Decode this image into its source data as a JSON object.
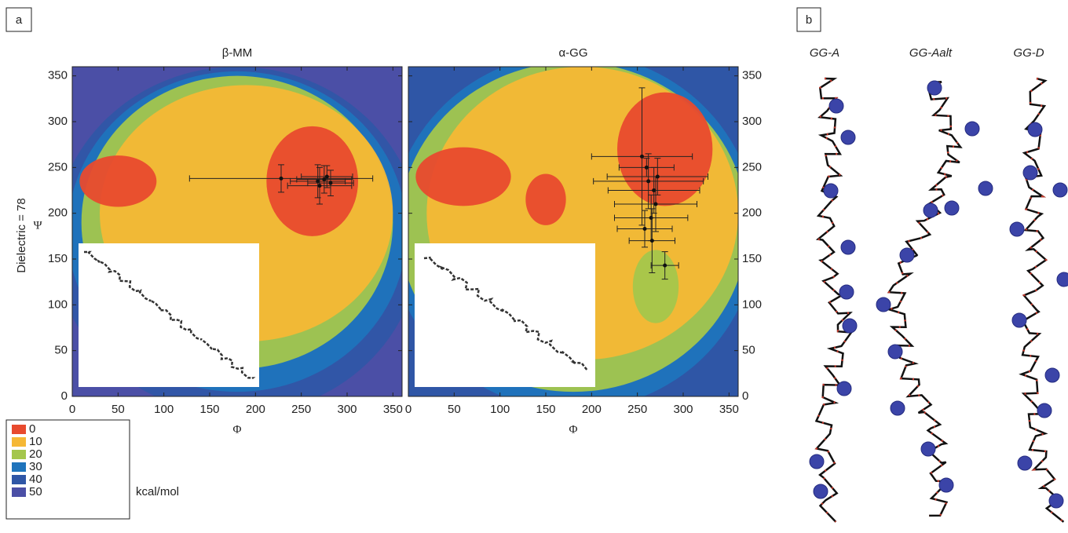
{
  "panel_labels": [
    "a",
    "b"
  ],
  "y_axis_outer_label": "Dielectric = 78",
  "chart_data": [
    {
      "type": "contour",
      "title": "β-MM",
      "x_label": "Φ",
      "y_label": "Ψ",
      "xlim": [
        0,
        360
      ],
      "ylim": [
        0,
        360
      ],
      "xticks": [
        0,
        50,
        100,
        150,
        200,
        250,
        300,
        350
      ],
      "yticks": [
        0,
        50,
        100,
        150,
        200,
        250,
        300,
        350
      ],
      "x": [
        228,
        268,
        275,
        282,
        270,
        278
      ],
      "values": [
        238,
        235,
        237,
        233,
        230,
        240
      ],
      "xerr": [
        100,
        30,
        30,
        25,
        35,
        28
      ],
      "yerr": [
        15,
        18,
        15,
        14,
        20,
        12
      ]
    },
    {
      "type": "contour",
      "title": "α-GG",
      "x_label": "Φ",
      "xlim": [
        0,
        360
      ],
      "ylim": [
        0,
        360
      ],
      "xticks": [
        0,
        50,
        100,
        150,
        200,
        250,
        300,
        350
      ],
      "yticks": [
        0,
        50,
        100,
        150,
        200,
        250,
        300,
        350
      ],
      "x": [
        255,
        262,
        268,
        270,
        265,
        258,
        272,
        280,
        260,
        266
      ],
      "values": [
        262,
        235,
        225,
        210,
        195,
        183,
        240,
        143,
        250,
        170
      ],
      "xerr": [
        55,
        60,
        50,
        45,
        40,
        30,
        55,
        15,
        30,
        25
      ],
      "yerr": [
        75,
        30,
        25,
        30,
        25,
        20,
        20,
        15,
        10,
        35
      ]
    }
  ],
  "legend": {
    "levels": [
      0,
      10,
      20,
      30,
      40,
      50
    ],
    "colors": [
      "#e84a2e",
      "#f5b835",
      "#a4c64c",
      "#1f74bc",
      "#2f56a6",
      "#4b4fa6"
    ],
    "unit": "kcal/mol"
  },
  "structures": {
    "labels": [
      "GG-A",
      "GG-Aalt",
      "GG-D"
    ]
  }
}
